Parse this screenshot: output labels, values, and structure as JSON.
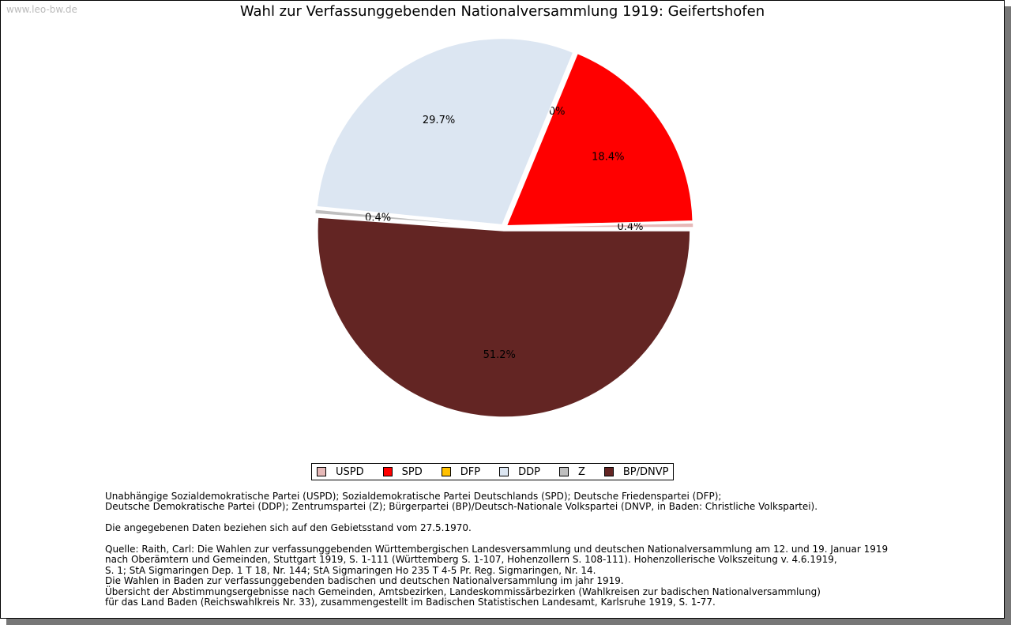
{
  "watermark": "www.leo-bw.de",
  "chart_data": {
    "type": "pie",
    "title": "Wahl zur Verfassunggebenden Nationalversammlung 1919: Geifertshofen",
    "categories": [
      "USPD",
      "SPD",
      "DFP",
      "DDP",
      "Z",
      "BP/DNVP"
    ],
    "values": [
      0.4,
      18.4,
      0.0,
      29.7,
      0.4,
      51.2
    ],
    "labels": [
      "0.4%",
      "18.4%",
      "0.0%",
      "29.7%",
      "0.4%",
      "51.2%"
    ],
    "colors": [
      "#e6b9b8",
      "#ff0000",
      "#ffc000",
      "#dce6f2",
      "#bfbfbf",
      "#632523"
    ],
    "legend_position": "bottom"
  },
  "notes": {
    "parties": [
      "Unabhängige Sozialdemokratische Partei (USPD); Sozialdemokratische Partei Deutschlands (SPD); Deutsche Friedenspartei (DFP);",
      "Deutsche Demokratische Partei (DDP); Zentrumspartei (Z); Bürgerpartei (BP)/Deutsch-Nationale Volkspartei (DNVP, in Baden: Christliche Volkspartei)."
    ],
    "territory": "Die angegebenen Daten beziehen sich auf den Gebietsstand vom 27.5.1970.",
    "source": [
      "Quelle: Raith, Carl: Die Wahlen zur verfassunggebenden Württembergischen Landesversammlung und deutschen Nationalversammlung am 12. und 19. Januar 1919",
      "nach Oberämtern und Gemeinden, Stuttgart 1919, S. 1-111 (Württemberg S. 1-107, Hohenzollern S. 108-111). Hohenzollerische Volkszeitung v. 4.6.1919,",
      "S. 1; StA Sigmaringen Dep. 1 T 18, Nr. 144; StA Sigmaringen Ho 235 T 4-5 Pr. Reg. Sigmaringen, Nr. 14.",
      "Die Wahlen in Baden zur verfassunggebenden badischen und deutschen Nationalversammlung im jahr 1919.",
      "Übersicht der Abstimmungsergebnisse nach Gemeinden, Amtsbezirken, Landeskommissärbezirken (Wahlkreisen zur badischen Nationalversammlung)",
      "für das Land Baden (Reichswahlkreis Nr. 33), zusammengestellt im Badischen Statistischen Landesamt, Karlsruhe 1919, S. 1-77."
    ]
  }
}
